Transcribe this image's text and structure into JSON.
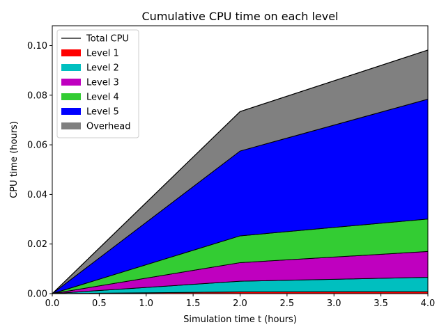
{
  "chart_data": {
    "type": "area",
    "title": "Cumulative CPU time on each level",
    "xlabel": "Simulation time t (hours)",
    "ylabel": "CPU time (hours)",
    "xlim": [
      0.0,
      4.0
    ],
    "ylim": [
      0.0,
      0.108
    ],
    "xticks": [
      0.0,
      0.5,
      1.0,
      1.5,
      2.0,
      2.5,
      3.0,
      3.5,
      4.0
    ],
    "xtick_labels": [
      "0.0",
      "0.5",
      "1.0",
      "1.5",
      "2.0",
      "2.5",
      "3.0",
      "3.5",
      "4.0"
    ],
    "yticks": [
      0.0,
      0.02,
      0.04,
      0.06,
      0.08,
      0.1
    ],
    "ytick_labels": [
      "0.00",
      "0.02",
      "0.04",
      "0.06",
      "0.08",
      "0.10"
    ],
    "grid": false,
    "legend_position": "top-left",
    "stacked": true,
    "x": [
      0.0,
      2.0,
      4.0
    ],
    "series": [
      {
        "name": "Level 1",
        "color": "#ff0000",
        "values": [
          0.0,
          0.0007,
          0.0008
        ]
      },
      {
        "name": "Level 2",
        "color": "#00bfbf",
        "values": [
          0.0,
          0.0043,
          0.0058
        ]
      },
      {
        "name": "Level 3",
        "color": "#bf00bf",
        "values": [
          0.0,
          0.0075,
          0.0104
        ]
      },
      {
        "name": "Level 4",
        "color": "#33cc33",
        "values": [
          0.0,
          0.0108,
          0.0131
        ]
      },
      {
        "name": "Level 5",
        "color": "#0000ff",
        "values": [
          0.0,
          0.0342,
          0.0483
        ]
      },
      {
        "name": "Overhead",
        "color": "#808080",
        "values": [
          0.0,
          0.0159,
          0.0198
        ]
      }
    ],
    "total": {
      "name": "Total CPU",
      "color": "#000000",
      "values": [
        0.0,
        0.0734,
        0.0982
      ]
    }
  }
}
